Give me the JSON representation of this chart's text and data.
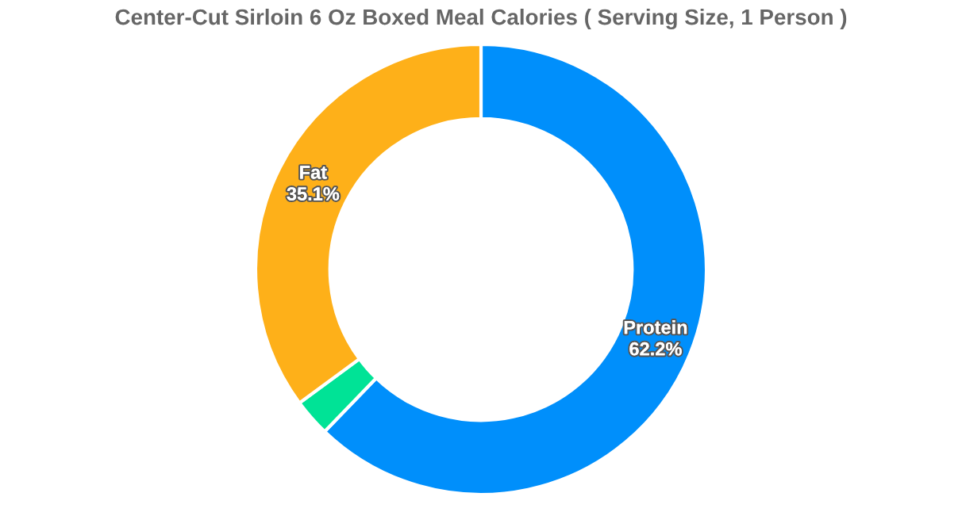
{
  "chart_data": {
    "type": "donut",
    "title": "Center-Cut Sirloin 6 Oz Boxed Meal Calories ( Serving Size, 1 Person )",
    "categories": [
      "Protein",
      null,
      "Fat"
    ],
    "values": [
      62.2,
      2.7,
      35.1
    ],
    "colors": [
      "#008ffb",
      "#00e396",
      "#feb019"
    ],
    "value_labels": [
      "62.2%",
      null,
      "35.1%"
    ],
    "legend": false
  }
}
